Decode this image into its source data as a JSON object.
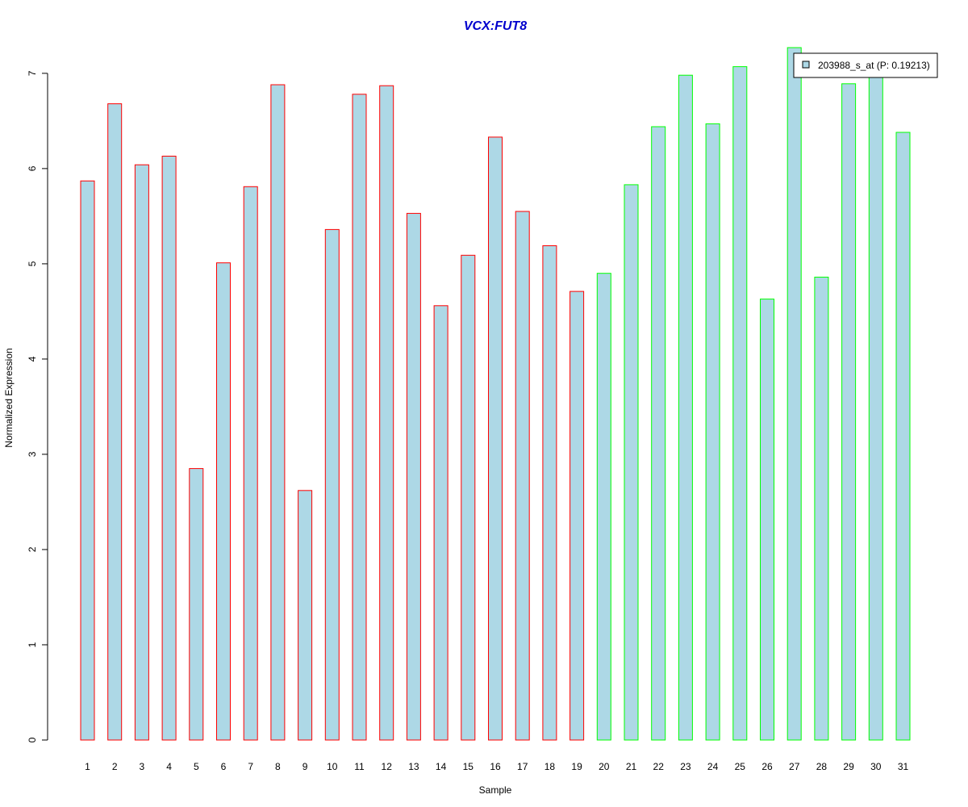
{
  "chart_data": {
    "type": "bar",
    "title": "VCX:FUT8",
    "xlabel": "Sample",
    "ylabel": "Normalized Expression",
    "categories": [
      "1",
      "2",
      "3",
      "4",
      "5",
      "6",
      "7",
      "8",
      "9",
      "10",
      "11",
      "12",
      "13",
      "14",
      "15",
      "16",
      "17",
      "18",
      "19",
      "20",
      "21",
      "22",
      "23",
      "24",
      "25",
      "26",
      "27",
      "28",
      "29",
      "30",
      "31"
    ],
    "series": [
      {
        "name": "203988_s_at (P: 0.19213)",
        "values": [
          5.87,
          6.68,
          6.04,
          6.13,
          2.85,
          5.01,
          5.81,
          6.88,
          2.62,
          5.36,
          6.78,
          6.87,
          5.53,
          4.56,
          5.09,
          6.33,
          5.55,
          5.19,
          4.71,
          4.9,
          5.83,
          6.44,
          6.98,
          6.47,
          7.07,
          4.63,
          7.27,
          4.86,
          6.89,
          6.98,
          6.38
        ]
      }
    ],
    "group_of_bar": [
      1,
      1,
      1,
      1,
      1,
      1,
      1,
      1,
      1,
      1,
      1,
      1,
      1,
      1,
      1,
      1,
      1,
      1,
      1,
      2,
      2,
      2,
      2,
      2,
      2,
      2,
      2,
      2,
      2,
      2,
      2
    ],
    "yticks": [
      0,
      1,
      2,
      3,
      4,
      5,
      6,
      7
    ],
    "ylim": [
      0,
      7.27
    ],
    "grid": false,
    "legend_position": "top-right",
    "colors": {
      "bar_fill": "#add8e6",
      "group1_border": "#ff0000",
      "group2_border": "#00ff00",
      "title": "#0000cd",
      "axis": "#000000"
    }
  }
}
